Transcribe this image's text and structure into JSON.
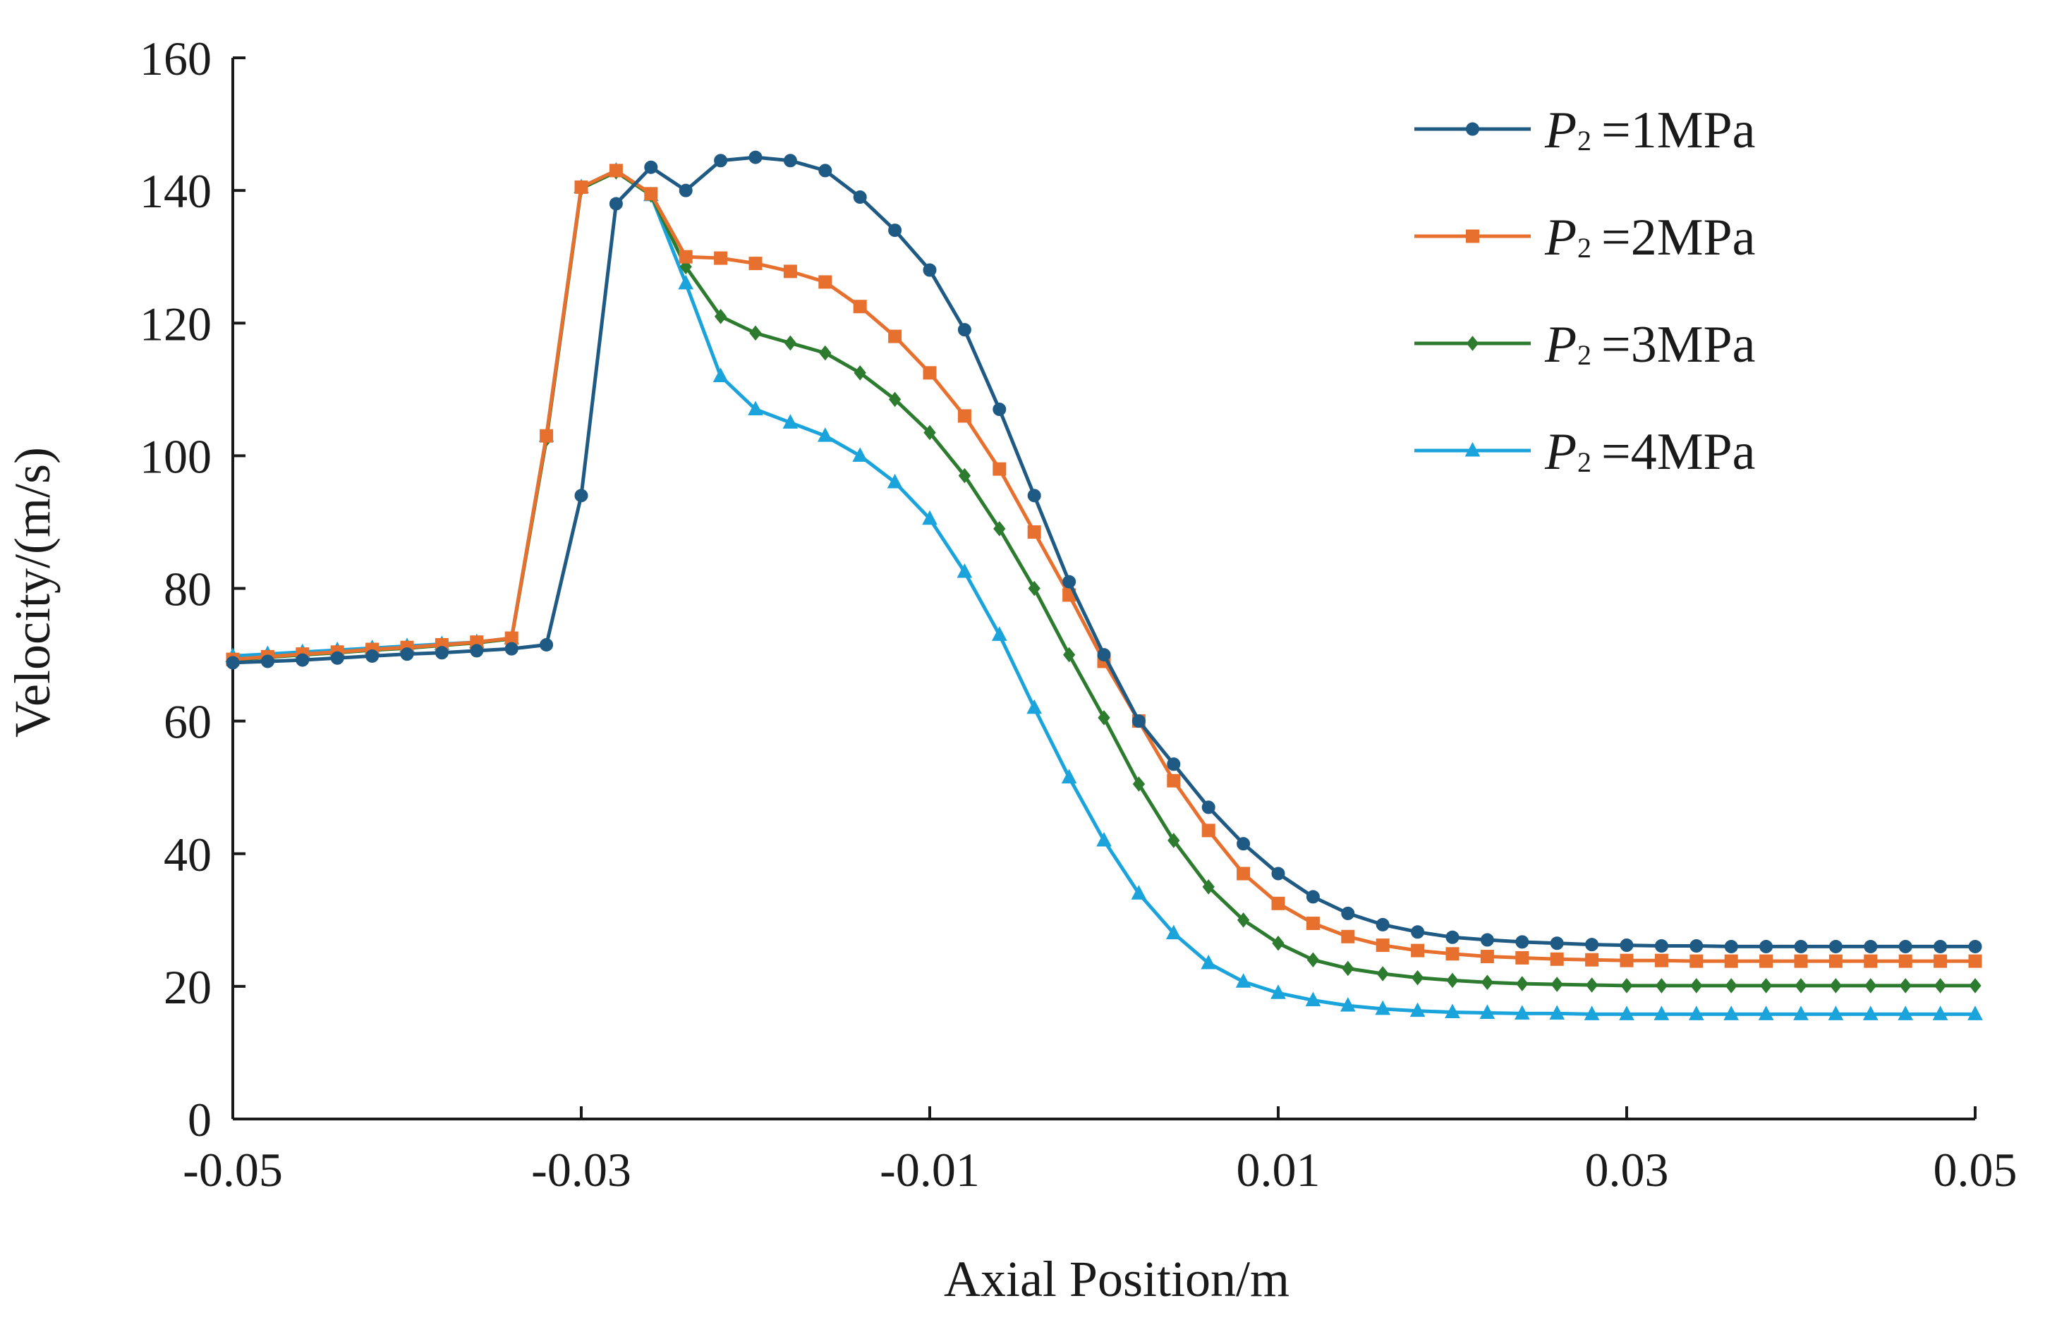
{
  "chart_data": {
    "type": "line",
    "title": "",
    "xlabel": "Axial Position/m",
    "ylabel": "Velocity/(m/s)",
    "xlim": [
      -0.05,
      0.05
    ],
    "ylim": [
      0,
      160
    ],
    "grid": false,
    "legend_position": "top-right",
    "x_ticks": [
      -0.05,
      -0.03,
      -0.01,
      0.01,
      0.03,
      0.05
    ],
    "x_tick_labels": [
      "-0.05",
      "-0.03",
      "-0.01",
      "0.01",
      "0.03",
      "0.05"
    ],
    "y_ticks": [
      0,
      20,
      40,
      60,
      80,
      100,
      120,
      140,
      160
    ],
    "y_tick_labels": [
      "0",
      "20",
      "40",
      "60",
      "80",
      "100",
      "120",
      "140",
      "160"
    ],
    "legend_prefix": "P",
    "legend_subscript": "2",
    "series": [
      {
        "name": "P2=1MPa",
        "label_value": "=1MPa",
        "color": "#1f5a85",
        "marker": "circle",
        "x": [
          -0.05,
          -0.048,
          -0.046,
          -0.044,
          -0.042,
          -0.04,
          -0.038,
          -0.036,
          -0.034,
          -0.032,
          -0.03,
          -0.028,
          -0.026,
          -0.024,
          -0.022,
          -0.02,
          -0.018,
          -0.016,
          -0.014,
          -0.012,
          -0.01,
          -0.008,
          -0.006,
          -0.004,
          -0.002,
          0.0,
          0.002,
          0.004,
          0.006,
          0.008,
          0.01,
          0.012,
          0.014,
          0.016,
          0.018,
          0.02,
          0.022,
          0.024,
          0.026,
          0.028,
          0.03,
          0.032,
          0.034,
          0.036,
          0.038,
          0.04,
          0.042,
          0.044,
          0.046,
          0.048,
          0.05
        ],
        "values": [
          68.8,
          69.0,
          69.2,
          69.5,
          69.8,
          70.1,
          70.3,
          70.6,
          70.9,
          71.5,
          94,
          138,
          143.5,
          140,
          144.5,
          145,
          144.5,
          143,
          139,
          134,
          128,
          119,
          107,
          94,
          81,
          70,
          60,
          53.5,
          47,
          41.5,
          37,
          33.5,
          31,
          29.3,
          28.2,
          27.4,
          27,
          26.7,
          26.5,
          26.3,
          26.2,
          26.1,
          26.1,
          26,
          26,
          26,
          26,
          26,
          26,
          26,
          26
        ]
      },
      {
        "name": "P2=2MPa",
        "label_value": "=2MPa",
        "color": "#e8702f",
        "marker": "square",
        "x": [
          -0.05,
          -0.048,
          -0.046,
          -0.044,
          -0.042,
          -0.04,
          -0.038,
          -0.036,
          -0.034,
          -0.032,
          -0.03,
          -0.028,
          -0.026,
          -0.024,
          -0.022,
          -0.02,
          -0.018,
          -0.016,
          -0.014,
          -0.012,
          -0.01,
          -0.008,
          -0.006,
          -0.004,
          -0.002,
          0.0,
          0.002,
          0.004,
          0.006,
          0.008,
          0.01,
          0.012,
          0.014,
          0.016,
          0.018,
          0.02,
          0.022,
          0.024,
          0.026,
          0.028,
          0.03,
          0.032,
          0.034,
          0.036,
          0.038,
          0.04,
          0.042,
          0.044,
          0.046,
          0.048,
          0.05
        ],
        "values": [
          69.3,
          69.7,
          70.1,
          70.4,
          70.8,
          71.1,
          71.5,
          71.9,
          72.5,
          103,
          140.5,
          143,
          139.5,
          130,
          129.8,
          129,
          127.8,
          126.2,
          122.5,
          118,
          112.5,
          106,
          98,
          88.5,
          79,
          69,
          60,
          51,
          43.5,
          37,
          32.5,
          29.5,
          27.5,
          26.2,
          25.4,
          24.9,
          24.5,
          24.3,
          24.1,
          24,
          23.9,
          23.9,
          23.8,
          23.8,
          23.8,
          23.8,
          23.8,
          23.8,
          23.8,
          23.8,
          23.8
        ]
      },
      {
        "name": "P2=3MPa",
        "label_value": "=3MPa",
        "color": "#2c7b2f",
        "marker": "diamond",
        "x": [
          -0.05,
          -0.048,
          -0.046,
          -0.044,
          -0.042,
          -0.04,
          -0.038,
          -0.036,
          -0.034,
          -0.032,
          -0.03,
          -0.028,
          -0.026,
          -0.024,
          -0.022,
          -0.02,
          -0.018,
          -0.016,
          -0.014,
          -0.012,
          -0.01,
          -0.008,
          -0.006,
          -0.004,
          -0.002,
          0.0,
          0.002,
          0.004,
          0.006,
          0.008,
          0.01,
          0.012,
          0.014,
          0.016,
          0.018,
          0.02,
          0.022,
          0.024,
          0.026,
          0.028,
          0.03,
          0.032,
          0.034,
          0.036,
          0.038,
          0.04,
          0.042,
          0.044,
          0.046,
          0.048,
          0.05
        ],
        "values": [
          69.2,
          69.6,
          70,
          70.3,
          70.7,
          71,
          71.4,
          71.8,
          72.4,
          102.5,
          140.3,
          142.8,
          139.3,
          128.5,
          121,
          118.5,
          117,
          115.5,
          112.5,
          108.5,
          103.5,
          97,
          89,
          80,
          70,
          60.5,
          50.5,
          42,
          35,
          30,
          26.5,
          24,
          22.7,
          21.9,
          21.3,
          20.9,
          20.6,
          20.4,
          20.3,
          20.2,
          20.1,
          20.1,
          20.1,
          20.1,
          20.1,
          20.1,
          20.1,
          20.1,
          20.1,
          20.1,
          20.1
        ]
      },
      {
        "name": "P2=4MPa",
        "label_value": "=4MPa",
        "color": "#1ba4dc",
        "marker": "triangle",
        "x": [
          -0.05,
          -0.048,
          -0.046,
          -0.044,
          -0.042,
          -0.04,
          -0.038,
          -0.036,
          -0.034,
          -0.032,
          -0.03,
          -0.028,
          -0.026,
          -0.024,
          -0.022,
          -0.02,
          -0.018,
          -0.016,
          -0.014,
          -0.012,
          -0.01,
          -0.008,
          -0.006,
          -0.004,
          -0.002,
          0.0,
          0.002,
          0.004,
          0.006,
          0.008,
          0.01,
          0.012,
          0.014,
          0.016,
          0.018,
          0.02,
          0.022,
          0.024,
          0.026,
          0.028,
          0.03,
          0.032,
          0.034,
          0.036,
          0.038,
          0.04,
          0.042,
          0.044,
          0.046,
          0.048,
          0.05
        ],
        "values": [
          69.8,
          70.1,
          70.4,
          70.7,
          71,
          71.3,
          71.6,
          71.9,
          72.5,
          103,
          140.5,
          143,
          139.3,
          126,
          112,
          107,
          105,
          103,
          100,
          96,
          90.5,
          82.5,
          73,
          62,
          51.5,
          42,
          34,
          28,
          23.5,
          20.7,
          19,
          17.9,
          17.1,
          16.6,
          16.3,
          16.1,
          16,
          15.9,
          15.9,
          15.8,
          15.8,
          15.8,
          15.8,
          15.8,
          15.8,
          15.8,
          15.8,
          15.8,
          15.8,
          15.8,
          15.8
        ]
      }
    ]
  }
}
